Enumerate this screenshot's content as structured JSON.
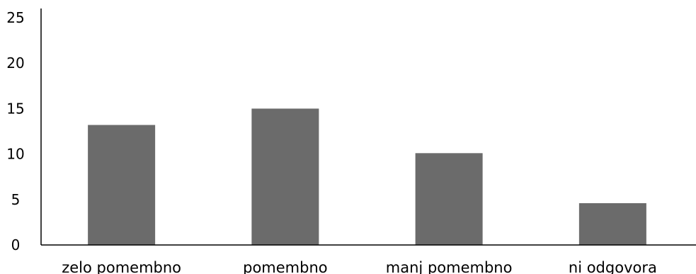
{
  "chart_data": {
    "type": "bar",
    "categories": [
      "zelo pomembno",
      "pomembno",
      "manj pomembno",
      "ni odgovora"
    ],
    "values": [
      13.2,
      15.0,
      10.1,
      4.6
    ],
    "y_ticks": [
      "0",
      "5",
      "10",
      "15",
      "20",
      "25"
    ],
    "ylim": [
      0,
      25
    ],
    "grid": false,
    "legend": "none",
    "bar_color": "#6b6b6b",
    "axis_color": "#000000"
  }
}
